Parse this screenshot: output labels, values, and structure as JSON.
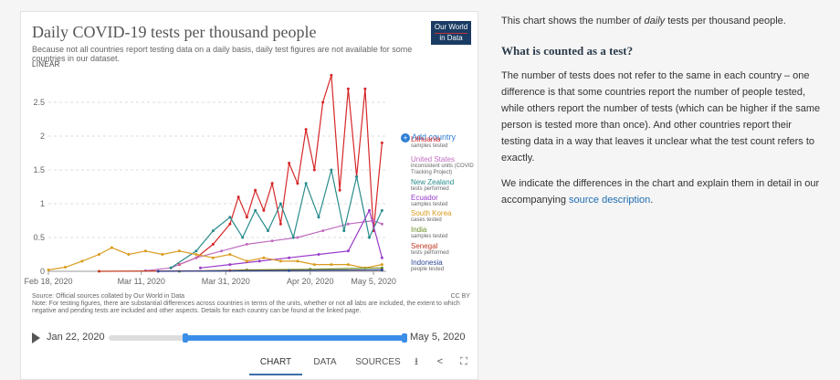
{
  "chart_title": "Daily COVID-19 tests per thousand people",
  "chart_subtitle": "Because not all countries report testing data on a daily basis, daily test figures are not available for some countries in our dataset.",
  "logo": {
    "line1": "Our World",
    "line2": "in Data"
  },
  "scale_label": "LINEAR",
  "add_country_label": "Add country",
  "legend": [
    {
      "name": "Lithuania",
      "sub": "samples tested",
      "color": "#d62728"
    },
    {
      "name": "United States",
      "sub": "inconsistent units (COVID Tracking Project)",
      "color": "#c06cc0"
    },
    {
      "name": "New Zealand",
      "sub": "tests performed",
      "color": "#2a8c8c"
    },
    {
      "name": "Ecuador",
      "sub": "samples tested",
      "color": "#9a3bc9"
    },
    {
      "name": "South Korea",
      "sub": "cases tested",
      "color": "#d99a1d"
    },
    {
      "name": "India",
      "sub": "samples tested",
      "color": "#6b8e23"
    },
    {
      "name": "Senegal",
      "sub": "tests performed",
      "color": "#c23b22"
    },
    {
      "name": "Indonesia",
      "sub": "people tested",
      "color": "#2c4a9a"
    }
  ],
  "footer": {
    "source": "Source: Official sources collated by Our World in Data",
    "note": "Note: For testing figures, there are substantial differences across countries in terms of the units, whether or not all labs are included, the extent to which negative and pending tests are included and other aspects. Details for each country can be found at the linked page.",
    "license": "CC BY"
  },
  "timeline": {
    "start_label": "Jan 22, 2020",
    "end_label": "May 5, 2020",
    "selected_start_fraction": 0.26,
    "selected_end_fraction": 1.0
  },
  "tabs": [
    {
      "label": "CHART",
      "active": true
    },
    {
      "label": "DATA",
      "active": false
    },
    {
      "label": "SOURCES",
      "active": false
    }
  ],
  "tab_icons": [
    "download-icon",
    "share-icon",
    "fullscreen-icon"
  ],
  "side_text": {
    "intro_prefix": "This chart shows the number of ",
    "intro_em": "daily",
    "intro_suffix": " tests per thousand people.",
    "heading": "What is counted as a test?",
    "paragraph": "The number of tests does not refer to the same in each country – one difference is that some countries report the number of people tested, while others report the number of tests (which can be higher if the same person is tested more than once). And other countries report their testing data in a way that leaves it unclear what the test count refers to exactly.",
    "para2_prefix": "We indicate the differences in the chart and explain them in detail in our accompanying ",
    "para2_link": "source description",
    "para2_suffix": "."
  },
  "chart_data": {
    "type": "line",
    "title": "Daily COVID-19 tests per thousand people",
    "ylim": [
      0,
      3
    ],
    "yticks": [
      0,
      0.5,
      1,
      1.5,
      2,
      2.5
    ],
    "ytick_labels": [
      "0",
      "0.5",
      "1",
      "1.5",
      "2",
      "2.5"
    ],
    "xlim": [
      "2020-02-18",
      "2020-05-08"
    ],
    "xticks": [
      "2020-02-18",
      "2020-03-11",
      "2020-03-31",
      "2020-04-20",
      "2020-05-05"
    ],
    "xtick_labels": [
      "Feb 18, 2020",
      "Mar 11, 2020",
      "Mar 31, 2020",
      "Apr 20, 2020",
      "May 5, 2020"
    ],
    "grid": true,
    "series": [
      {
        "name": "Lithuania",
        "color": "#d62728",
        "x": [
          "2020-03-20",
          "2020-03-24",
          "2020-03-28",
          "2020-04-01",
          "2020-04-03",
          "2020-04-05",
          "2020-04-07",
          "2020-04-09",
          "2020-04-11",
          "2020-04-13",
          "2020-04-15",
          "2020-04-17",
          "2020-04-19",
          "2020-04-21",
          "2020-04-23",
          "2020-04-25",
          "2020-04-27",
          "2020-04-29",
          "2020-05-01",
          "2020-05-03",
          "2020-05-05",
          "2020-05-07"
        ],
        "y": [
          0.1,
          0.2,
          0.4,
          0.7,
          1.1,
          0.8,
          1.2,
          0.9,
          1.3,
          0.7,
          1.6,
          1.3,
          2.1,
          1.5,
          2.5,
          2.9,
          1.2,
          2.7,
          1.4,
          2.7,
          0.6,
          1.9
        ]
      },
      {
        "name": "United States",
        "color": "#c06cc0",
        "x": [
          "2020-03-12",
          "2020-03-18",
          "2020-03-24",
          "2020-03-30",
          "2020-04-05",
          "2020-04-11",
          "2020-04-17",
          "2020-04-23",
          "2020-04-29",
          "2020-05-05",
          "2020-05-07"
        ],
        "y": [
          0.01,
          0.05,
          0.2,
          0.3,
          0.4,
          0.45,
          0.5,
          0.6,
          0.7,
          0.75,
          0.7
        ]
      },
      {
        "name": "New Zealand",
        "color": "#2a8c8c",
        "x": [
          "2020-03-18",
          "2020-03-24",
          "2020-03-28",
          "2020-04-01",
          "2020-04-04",
          "2020-04-07",
          "2020-04-10",
          "2020-04-13",
          "2020-04-16",
          "2020-04-19",
          "2020-04-22",
          "2020-04-25",
          "2020-04-28",
          "2020-05-01",
          "2020-05-04",
          "2020-05-07"
        ],
        "y": [
          0.05,
          0.3,
          0.6,
          0.8,
          0.5,
          0.9,
          0.6,
          1.0,
          0.5,
          1.3,
          0.8,
          1.5,
          0.6,
          1.4,
          0.5,
          0.9
        ]
      },
      {
        "name": "Ecuador",
        "color": "#9a3bc9",
        "x": [
          "2020-03-25",
          "2020-04-01",
          "2020-04-08",
          "2020-04-15",
          "2020-04-22",
          "2020-04-29",
          "2020-05-04",
          "2020-05-07"
        ],
        "y": [
          0.05,
          0.1,
          0.15,
          0.2,
          0.25,
          0.3,
          0.9,
          0.2
        ]
      },
      {
        "name": "South Korea",
        "color": "#d99a1d",
        "x": [
          "2020-02-18",
          "2020-02-22",
          "2020-02-26",
          "2020-03-01",
          "2020-03-04",
          "2020-03-08",
          "2020-03-12",
          "2020-03-16",
          "2020-03-20",
          "2020-03-24",
          "2020-03-28",
          "2020-04-01",
          "2020-04-05",
          "2020-04-09",
          "2020-04-13",
          "2020-04-17",
          "2020-04-21",
          "2020-04-25",
          "2020-04-29",
          "2020-05-03",
          "2020-05-07"
        ],
        "y": [
          0.02,
          0.06,
          0.15,
          0.25,
          0.35,
          0.25,
          0.3,
          0.25,
          0.3,
          0.25,
          0.2,
          0.25,
          0.15,
          0.2,
          0.15,
          0.15,
          0.1,
          0.1,
          0.1,
          0.05,
          0.1
        ]
      },
      {
        "name": "India",
        "color": "#6b8e23",
        "x": [
          "2020-03-20",
          "2020-04-05",
          "2020-04-20",
          "2020-05-07"
        ],
        "y": [
          0.0,
          0.02,
          0.03,
          0.05
        ]
      },
      {
        "name": "Senegal",
        "color": "#c23b22",
        "x": [
          "2020-03-01",
          "2020-04-01",
          "2020-05-07"
        ],
        "y": [
          0.0,
          0.01,
          0.02
        ]
      },
      {
        "name": "Indonesia",
        "color": "#2c4a9a",
        "x": [
          "2020-03-15",
          "2020-04-15",
          "2020-05-07"
        ],
        "y": [
          0.0,
          0.01,
          0.02
        ]
      }
    ]
  }
}
